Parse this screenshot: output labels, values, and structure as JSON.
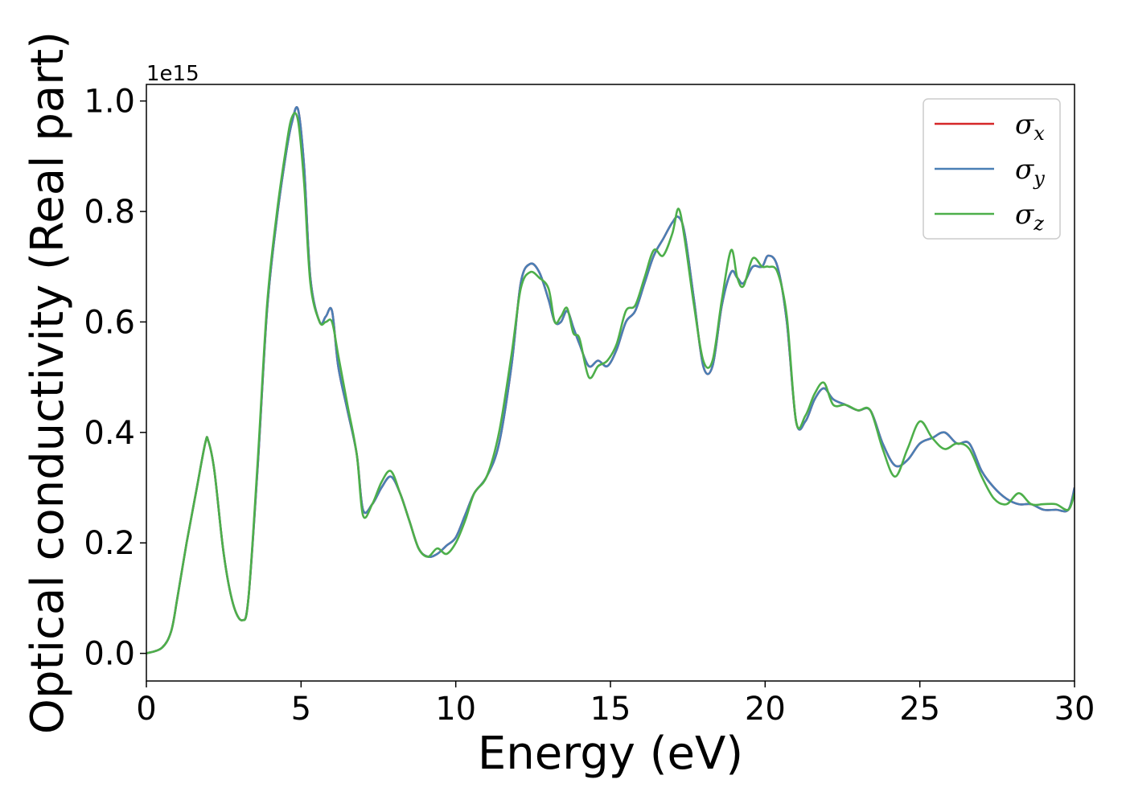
{
  "chart_data": {
    "type": "line",
    "xlabel": "Energy (eV)",
    "ylabel": "Optical conductivity (Real part)",
    "y_offset_label": "1e15",
    "xlim": [
      0,
      30
    ],
    "ylim": [
      -0.05,
      1.03
    ],
    "xticks": [
      0,
      5,
      10,
      15,
      20,
      25,
      30
    ],
    "xtick_labels": [
      "0",
      "5",
      "10",
      "15",
      "20",
      "25",
      "30"
    ],
    "yticks": [
      0.0,
      0.2,
      0.4,
      0.6,
      0.8,
      1.0
    ],
    "ytick_labels": [
      "0.0",
      "0.2",
      "0.4",
      "0.6",
      "0.8",
      "1.0"
    ],
    "grid": false,
    "legend_position": "top-right",
    "series": [
      {
        "name": "σx",
        "symbol": "σ",
        "subscript": "x",
        "color": "#d62728",
        "x": [
          0,
          0.5,
          0.8,
          1.0,
          1.3,
          1.6,
          1.9,
          2.0,
          2.2,
          2.5,
          2.8,
          3.1,
          3.3,
          3.6,
          3.9,
          4.2,
          4.5,
          4.7,
          4.9,
          5.1,
          5.3,
          5.6,
          5.8,
          6.0,
          6.2,
          6.5,
          6.8,
          7.0,
          7.3,
          7.6,
          7.9,
          8.2,
          8.5,
          8.8,
          9.1,
          9.4,
          9.7,
          10.0,
          10.3,
          10.6,
          11.0,
          11.4,
          11.8,
          12.1,
          12.4,
          12.7,
          13.0,
          13.2,
          13.4,
          13.6,
          13.8,
          14.0,
          14.3,
          14.6,
          14.9,
          15.2,
          15.5,
          15.8,
          16.1,
          16.4,
          16.7,
          17.0,
          17.2,
          17.4,
          17.7,
          18.0,
          18.3,
          18.6,
          18.9,
          19.1,
          19.3,
          19.6,
          19.9,
          20.1,
          20.4,
          20.7,
          21.0,
          21.3,
          21.6,
          21.9,
          22.2,
          22.6,
          23.0,
          23.4,
          23.8,
          24.2,
          24.6,
          25.0,
          25.4,
          25.8,
          26.2,
          26.6,
          27.0,
          27.4,
          27.8,
          28.2,
          28.6,
          29.0,
          29.4,
          29.8,
          30.0
        ],
        "y": [
          0.0,
          0.01,
          0.04,
          0.1,
          0.2,
          0.29,
          0.38,
          0.385,
          0.33,
          0.18,
          0.09,
          0.06,
          0.1,
          0.34,
          0.62,
          0.78,
          0.9,
          0.96,
          0.985,
          0.88,
          0.68,
          0.6,
          0.61,
          0.62,
          0.52,
          0.44,
          0.36,
          0.26,
          0.27,
          0.3,
          0.32,
          0.29,
          0.24,
          0.19,
          0.175,
          0.18,
          0.195,
          0.21,
          0.25,
          0.29,
          0.32,
          0.38,
          0.52,
          0.67,
          0.705,
          0.69,
          0.64,
          0.6,
          0.6,
          0.62,
          0.59,
          0.56,
          0.52,
          0.53,
          0.52,
          0.55,
          0.6,
          0.62,
          0.67,
          0.72,
          0.75,
          0.78,
          0.79,
          0.76,
          0.64,
          0.52,
          0.52,
          0.63,
          0.69,
          0.68,
          0.67,
          0.7,
          0.7,
          0.72,
          0.7,
          0.6,
          0.42,
          0.42,
          0.46,
          0.48,
          0.46,
          0.45,
          0.44,
          0.44,
          0.38,
          0.34,
          0.35,
          0.38,
          0.39,
          0.4,
          0.38,
          0.38,
          0.33,
          0.3,
          0.28,
          0.27,
          0.27,
          0.26,
          0.26,
          0.26,
          0.3
        ]
      },
      {
        "name": "σy",
        "symbol": "σ",
        "subscript": "y",
        "color": "#4a7fb5",
        "x": [
          0,
          0.5,
          0.8,
          1.0,
          1.3,
          1.6,
          1.9,
          2.0,
          2.2,
          2.5,
          2.8,
          3.1,
          3.3,
          3.6,
          3.9,
          4.2,
          4.5,
          4.7,
          4.9,
          5.1,
          5.3,
          5.6,
          5.8,
          6.0,
          6.2,
          6.5,
          6.8,
          7.0,
          7.3,
          7.6,
          7.9,
          8.2,
          8.5,
          8.8,
          9.1,
          9.4,
          9.7,
          10.0,
          10.3,
          10.6,
          11.0,
          11.4,
          11.8,
          12.1,
          12.4,
          12.7,
          13.0,
          13.2,
          13.4,
          13.6,
          13.8,
          14.0,
          14.3,
          14.6,
          14.9,
          15.2,
          15.5,
          15.8,
          16.1,
          16.4,
          16.7,
          17.0,
          17.2,
          17.4,
          17.7,
          18.0,
          18.3,
          18.6,
          18.9,
          19.1,
          19.3,
          19.6,
          19.9,
          20.1,
          20.4,
          20.7,
          21.0,
          21.3,
          21.6,
          21.9,
          22.2,
          22.6,
          23.0,
          23.4,
          23.8,
          24.2,
          24.6,
          25.0,
          25.4,
          25.8,
          26.2,
          26.6,
          27.0,
          27.4,
          27.8,
          28.2,
          28.6,
          29.0,
          29.4,
          29.8,
          30.0
        ],
        "y": [
          0.0,
          0.01,
          0.04,
          0.1,
          0.2,
          0.29,
          0.38,
          0.385,
          0.33,
          0.18,
          0.09,
          0.06,
          0.1,
          0.34,
          0.62,
          0.78,
          0.9,
          0.96,
          0.985,
          0.88,
          0.68,
          0.6,
          0.61,
          0.62,
          0.52,
          0.44,
          0.36,
          0.26,
          0.27,
          0.3,
          0.32,
          0.29,
          0.24,
          0.19,
          0.175,
          0.18,
          0.195,
          0.21,
          0.25,
          0.29,
          0.32,
          0.38,
          0.52,
          0.67,
          0.705,
          0.69,
          0.64,
          0.6,
          0.6,
          0.62,
          0.59,
          0.56,
          0.52,
          0.53,
          0.52,
          0.55,
          0.6,
          0.62,
          0.67,
          0.72,
          0.75,
          0.78,
          0.79,
          0.76,
          0.64,
          0.52,
          0.52,
          0.63,
          0.69,
          0.68,
          0.67,
          0.7,
          0.7,
          0.72,
          0.7,
          0.6,
          0.42,
          0.42,
          0.46,
          0.48,
          0.46,
          0.45,
          0.44,
          0.44,
          0.38,
          0.34,
          0.35,
          0.38,
          0.39,
          0.4,
          0.38,
          0.38,
          0.33,
          0.3,
          0.28,
          0.27,
          0.27,
          0.26,
          0.26,
          0.26,
          0.3
        ]
      },
      {
        "name": "σz",
        "symbol": "σ",
        "subscript": "z",
        "color": "#4daf4a",
        "x": [
          0,
          0.5,
          0.8,
          1.0,
          1.3,
          1.6,
          1.9,
          2.0,
          2.2,
          2.5,
          2.8,
          3.1,
          3.3,
          3.6,
          3.9,
          4.2,
          4.5,
          4.7,
          4.9,
          5.1,
          5.3,
          5.6,
          5.8,
          6.0,
          6.2,
          6.5,
          6.8,
          7.0,
          7.3,
          7.6,
          7.9,
          8.2,
          8.5,
          8.8,
          9.1,
          9.4,
          9.7,
          10.0,
          10.3,
          10.6,
          11.0,
          11.4,
          11.8,
          12.1,
          12.4,
          12.7,
          13.0,
          13.2,
          13.4,
          13.6,
          13.8,
          14.0,
          14.3,
          14.6,
          14.9,
          15.2,
          15.5,
          15.8,
          16.1,
          16.4,
          16.7,
          17.0,
          17.2,
          17.4,
          17.7,
          18.0,
          18.3,
          18.6,
          18.9,
          19.1,
          19.3,
          19.6,
          19.9,
          20.1,
          20.4,
          20.7,
          21.0,
          21.3,
          21.6,
          21.9,
          22.2,
          22.6,
          23.0,
          23.4,
          23.8,
          24.2,
          24.6,
          25.0,
          25.4,
          25.8,
          26.2,
          26.6,
          27.0,
          27.4,
          27.8,
          28.2,
          28.6,
          29.0,
          29.4,
          29.8,
          30.0
        ],
        "y": [
          0.0,
          0.01,
          0.04,
          0.1,
          0.2,
          0.29,
          0.38,
          0.385,
          0.33,
          0.18,
          0.09,
          0.06,
          0.1,
          0.35,
          0.63,
          0.79,
          0.91,
          0.97,
          0.965,
          0.85,
          0.67,
          0.6,
          0.6,
          0.6,
          0.54,
          0.45,
          0.36,
          0.25,
          0.27,
          0.31,
          0.33,
          0.29,
          0.24,
          0.19,
          0.175,
          0.19,
          0.18,
          0.2,
          0.24,
          0.29,
          0.32,
          0.4,
          0.54,
          0.66,
          0.69,
          0.68,
          0.66,
          0.6,
          0.61,
          0.625,
          0.58,
          0.57,
          0.5,
          0.52,
          0.53,
          0.56,
          0.62,
          0.63,
          0.68,
          0.73,
          0.72,
          0.76,
          0.805,
          0.75,
          0.63,
          0.53,
          0.53,
          0.64,
          0.73,
          0.68,
          0.665,
          0.715,
          0.7,
          0.7,
          0.69,
          0.61,
          0.42,
          0.43,
          0.47,
          0.49,
          0.45,
          0.45,
          0.44,
          0.44,
          0.37,
          0.32,
          0.37,
          0.42,
          0.39,
          0.37,
          0.38,
          0.37,
          0.32,
          0.28,
          0.27,
          0.29,
          0.27,
          0.27,
          0.27,
          0.26,
          0.29
        ]
      }
    ]
  }
}
